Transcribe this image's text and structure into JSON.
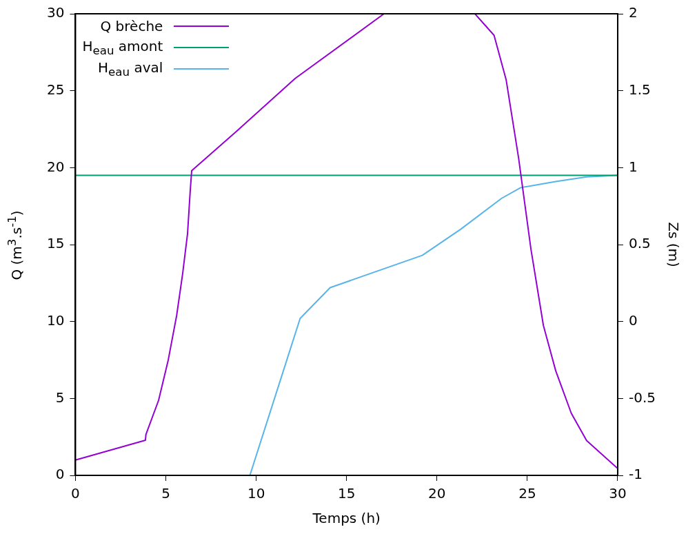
{
  "chart_data": {
    "type": "line",
    "xlabel": "Temps (h)",
    "ylabel": "Q (m$^{3}$.s$^{-1}$)",
    "y2label": "Zs (m)",
    "xlim": [
      0,
      30
    ],
    "xticks": [
      0,
      5,
      10,
      15,
      20,
      25,
      30
    ],
    "ylim": [
      0,
      30
    ],
    "yticks": [
      0,
      5,
      10,
      15,
      20,
      25,
      30
    ],
    "y2lim": [
      -1,
      2
    ],
    "y2ticks": [
      -1,
      -0.5,
      0,
      0.5,
      1,
      1.5,
      2
    ],
    "grid": false,
    "legend": "top left",
    "marker": "none",
    "line_style": "solid",
    "series": [
      {
        "name": "Q brèche",
        "color": "#9400d3",
        "x": [
          0,
          3.87,
          3.9,
          4.6,
          5.13,
          5.6,
          5.93,
          6.2,
          6.35,
          6.43,
          8.85,
          12.16,
          17.07,
          21.98,
          22.1,
          23.16,
          23.83,
          24.52,
          25.2,
          25.89,
          26.57,
          27.43,
          28.28,
          30
        ],
        "values": [
          1.0,
          2.28,
          2.66,
          4.88,
          7.48,
          10.4,
          13.1,
          15.7,
          18.5,
          19.8,
          22.3,
          25.8,
          30,
          30,
          30,
          28.6,
          25.7,
          20.6,
          14.7,
          9.74,
          6.8,
          4.04,
          2.26,
          0.45
        ]
      },
      {
        "name": "H$_{eau}$ amont",
        "color": "#009e73",
        "axis": "y2",
        "x": [
          0,
          30
        ],
        "values": [
          0.95,
          0.95
        ]
      },
      {
        "name": "H$_{eau}$ aval",
        "color": "#56b4e9",
        "axis": "y2",
        "x": [
          9.65,
          12.43,
          14.09,
          19.19,
          21.32,
          23.57,
          24.63,
          26.57,
          28.28,
          30
        ],
        "values": [
          -1,
          0.02,
          0.22,
          0.43,
          0.6,
          0.8,
          0.87,
          0.91,
          0.94,
          0.95
        ]
      }
    ]
  }
}
